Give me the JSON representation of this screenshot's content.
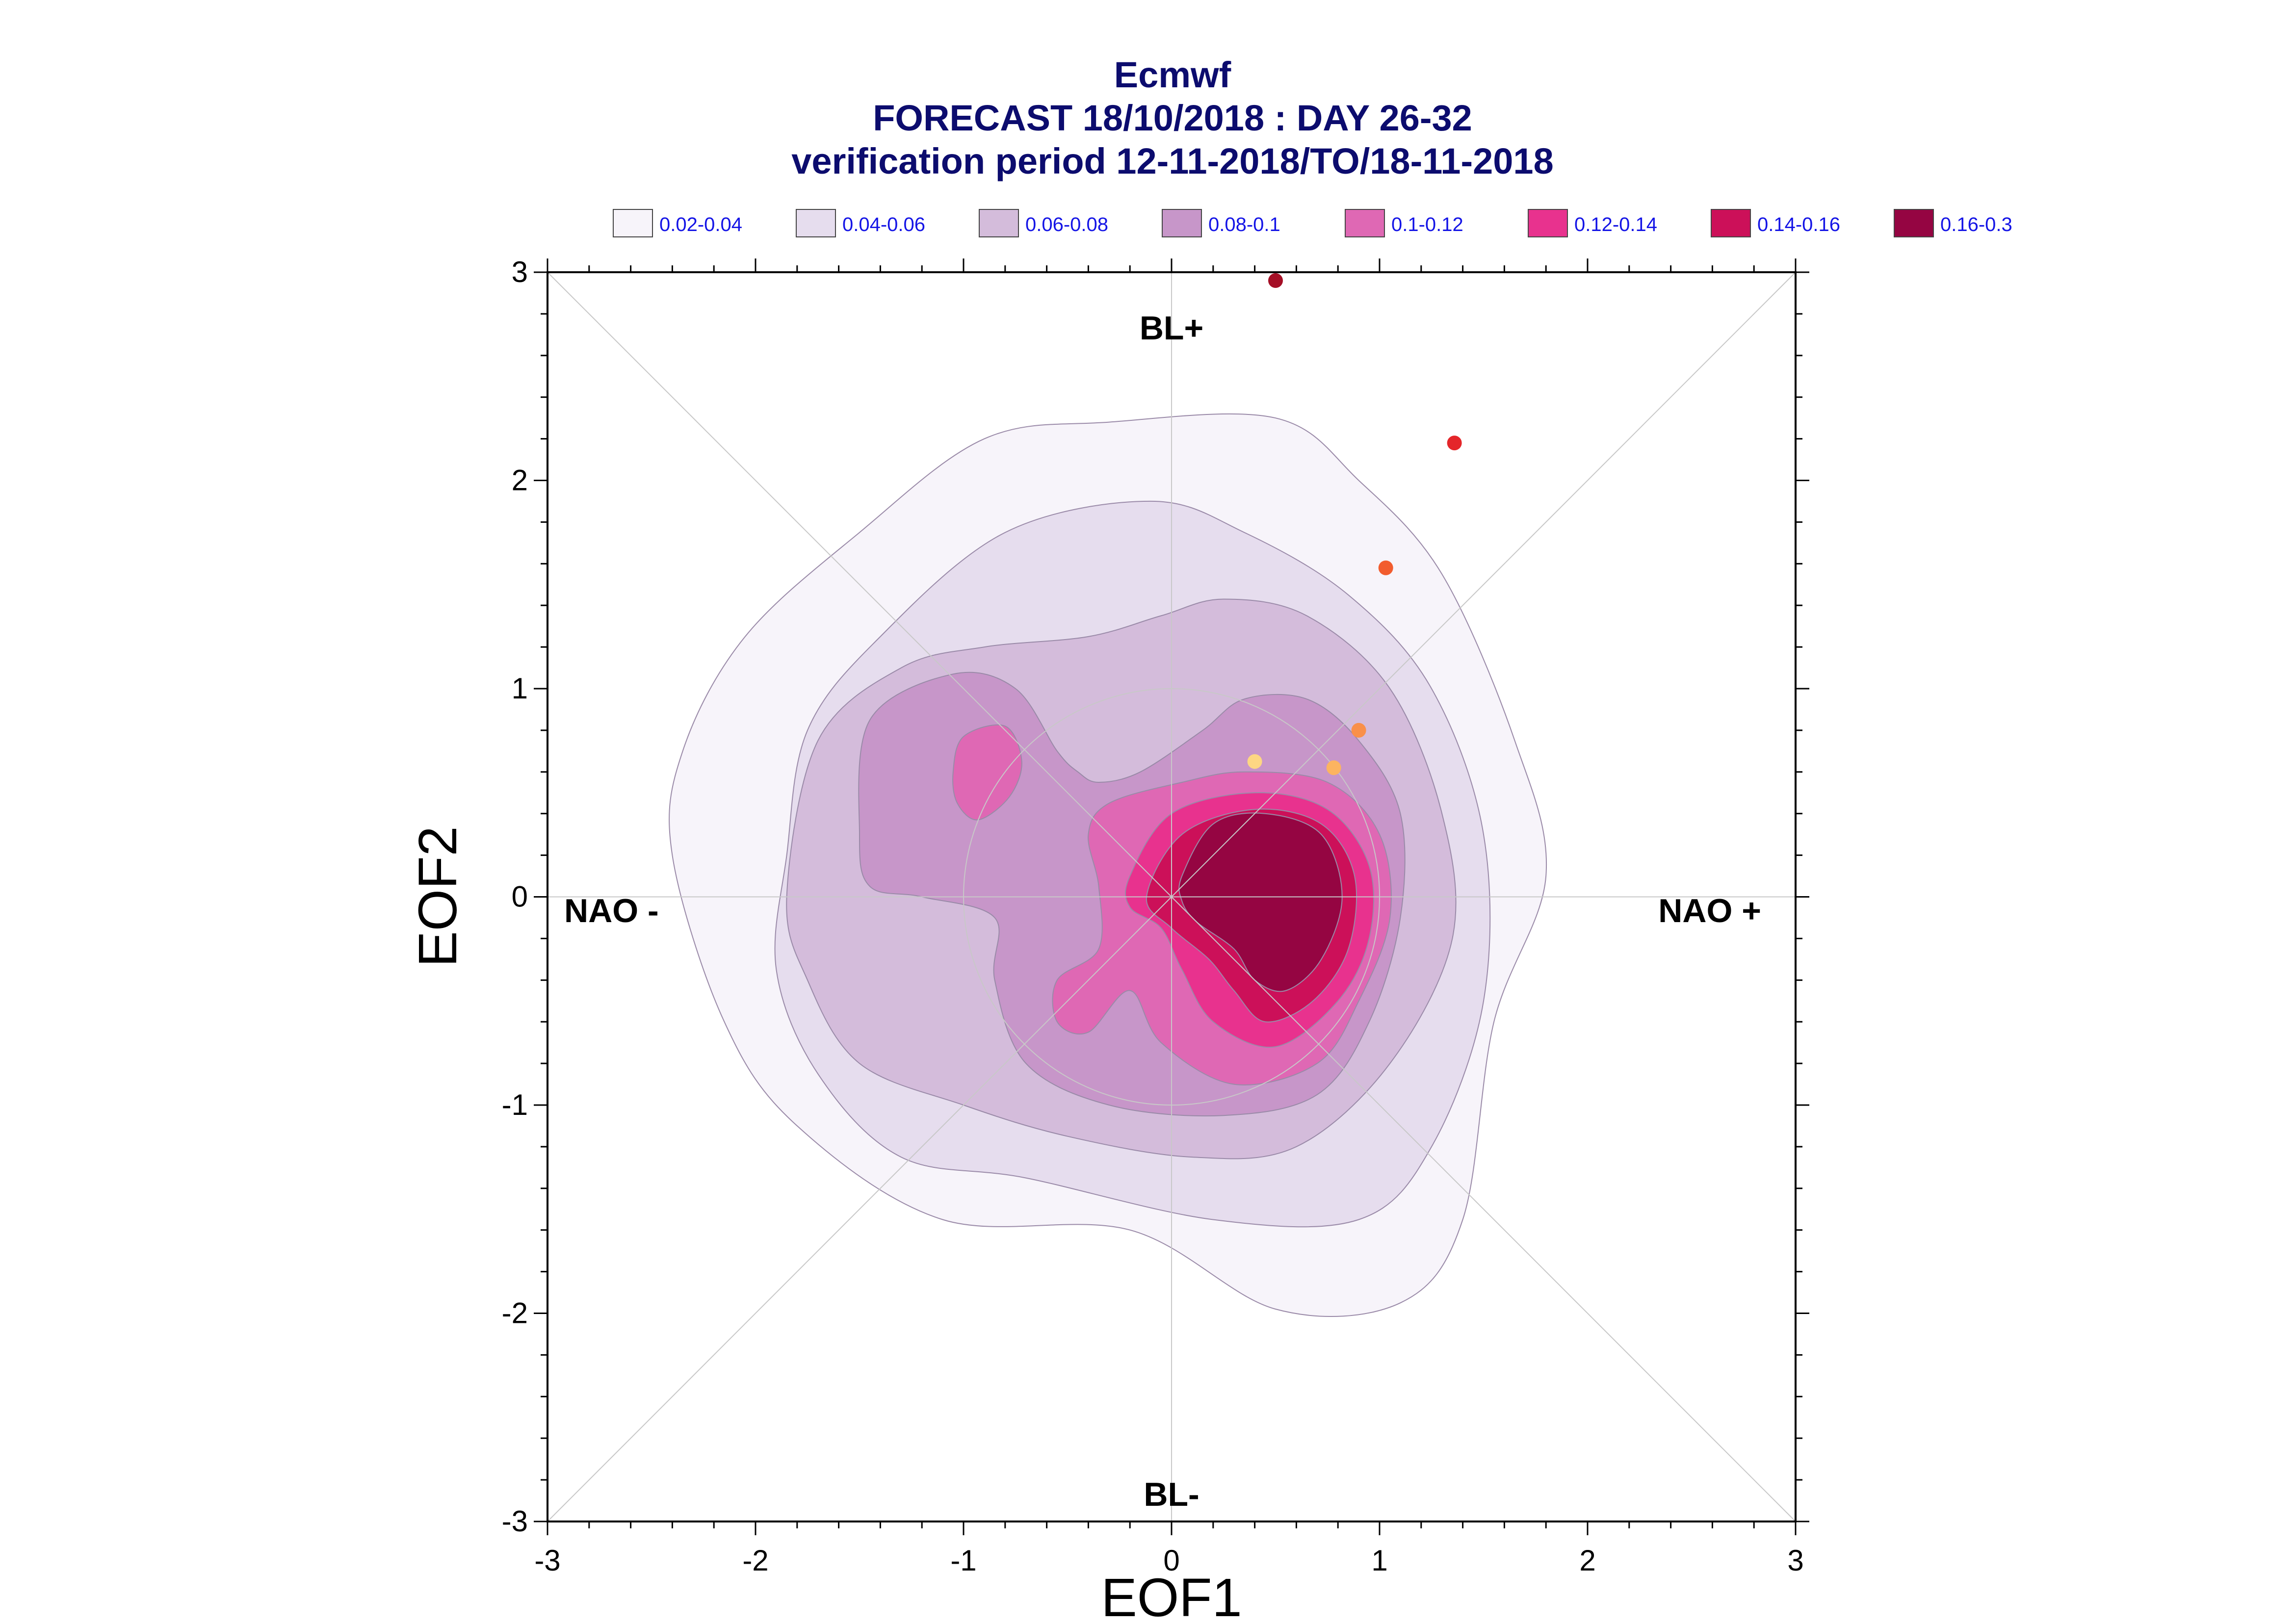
{
  "chart_data": {
    "type": "contour",
    "title_lines": [
      "Ecmwf",
      "FORECAST 18/10/2018 : DAY 26-32",
      "verification period 12-11-2018/TO/18-11-2018"
    ],
    "xlabel": "EOF1",
    "ylabel": "EOF2",
    "xlim": [
      -3,
      3
    ],
    "ylim": [
      -3,
      3
    ],
    "x_ticks": [
      "-3",
      "-2",
      "-1",
      "0",
      "1",
      "2",
      "3"
    ],
    "y_ticks": [
      "-3",
      "-2",
      "-1",
      "0",
      "1",
      "2",
      "3"
    ],
    "regime_labels": {
      "top": "BL+",
      "bottom": "BL-",
      "left": "NAO -",
      "right": "NAO +"
    },
    "legend": [
      {
        "label": "0.02-0.04",
        "color": "#f7f4fa"
      },
      {
        "label": "0.04-0.06",
        "color": "#e6ddee"
      },
      {
        "label": "0.06-0.08",
        "color": "#d4bcdb"
      },
      {
        "label": "0.08-0.1",
        "color": "#c796c9"
      },
      {
        "label": "0.1-0.12",
        "color": "#df68b4"
      },
      {
        "label": "0.12-0.14",
        "color": "#e8328e"
      },
      {
        "label": "0.14-0.16",
        "color": "#cc1059"
      },
      {
        "label": "0.16-0.3",
        "color": "#950542"
      }
    ],
    "contour_levels": [
      {
        "level": "0.02-0.04",
        "polygons": [
          [
            [
              -2.4,
              0.2
            ],
            [
              -2.35,
              0.7
            ],
            [
              -2.05,
              1.25
            ],
            [
              -1.5,
              1.75
            ],
            [
              -0.9,
              2.2
            ],
            [
              -0.3,
              2.28
            ],
            [
              0.5,
              2.3
            ],
            [
              0.9,
              2.0
            ],
            [
              1.3,
              1.55
            ],
            [
              1.65,
              0.75
            ],
            [
              1.8,
              0.1
            ],
            [
              1.55,
              -0.6
            ],
            [
              1.4,
              -1.55
            ],
            [
              1.1,
              -1.95
            ],
            [
              0.5,
              -1.98
            ],
            [
              -0.2,
              -1.6
            ],
            [
              -1.1,
              -1.55
            ],
            [
              -1.8,
              -1.1
            ],
            [
              -2.15,
              -0.6
            ]
          ]
        ]
      },
      {
        "level": "0.04-0.06",
        "polygons": [
          [
            [
              -1.85,
              0.2
            ],
            [
              -1.75,
              0.8
            ],
            [
              -1.4,
              1.25
            ],
            [
              -0.8,
              1.75
            ],
            [
              -0.1,
              1.9
            ],
            [
              0.35,
              1.75
            ],
            [
              0.85,
              1.45
            ],
            [
              1.25,
              1.0
            ],
            [
              1.5,
              0.3
            ],
            [
              1.5,
              -0.5
            ],
            [
              1.25,
              -1.2
            ],
            [
              0.9,
              -1.55
            ],
            [
              0.2,
              -1.55
            ],
            [
              -0.7,
              -1.35
            ],
            [
              -1.3,
              -1.25
            ],
            [
              -1.7,
              -0.85
            ],
            [
              -1.9,
              -0.35
            ]
          ]
        ]
      },
      {
        "level": "0.06-0.08",
        "polygons": [
          [
            [
              -1.85,
              0.0
            ],
            [
              -1.7,
              0.75
            ],
            [
              -1.3,
              1.1
            ],
            [
              -0.9,
              1.2
            ],
            [
              -0.4,
              1.25
            ],
            [
              -0.05,
              1.35
            ],
            [
              0.25,
              1.43
            ],
            [
              0.65,
              1.35
            ],
            [
              1.05,
              1.0
            ],
            [
              1.3,
              0.4
            ],
            [
              1.35,
              -0.2
            ],
            [
              1.05,
              -0.8
            ],
            [
              0.6,
              -1.2
            ],
            [
              0.1,
              -1.25
            ],
            [
              -0.5,
              -1.15
            ],
            [
              -1.0,
              -1.0
            ],
            [
              -1.5,
              -0.8
            ],
            [
              -1.75,
              -0.4
            ]
          ]
        ]
      },
      {
        "level": "0.08-0.1",
        "polygons": [
          [
            [
              -1.5,
              0.3
            ],
            [
              -1.45,
              0.85
            ],
            [
              -1.05,
              1.07
            ],
            [
              -0.75,
              1.0
            ],
            [
              -0.55,
              0.7
            ],
            [
              -0.45,
              0.6
            ],
            [
              -0.35,
              0.55
            ],
            [
              -0.15,
              0.6
            ],
            [
              0.15,
              0.8
            ],
            [
              0.35,
              0.95
            ],
            [
              0.65,
              0.95
            ],
            [
              0.9,
              0.75
            ],
            [
              1.1,
              0.4
            ],
            [
              1.1,
              -0.1
            ],
            [
              0.95,
              -0.6
            ],
            [
              0.7,
              -0.95
            ],
            [
              0.25,
              -1.05
            ],
            [
              -0.3,
              -1.0
            ],
            [
              -0.7,
              -0.8
            ],
            [
              -0.85,
              -0.4
            ],
            [
              -0.85,
              -0.1
            ],
            [
              -1.2,
              0.0
            ],
            [
              -1.45,
              0.05
            ]
          ]
        ]
      },
      {
        "level": "0.1-0.12",
        "polygons": [
          [
            [
              -1.05,
              0.6
            ],
            [
              -1.0,
              0.77
            ],
            [
              -0.8,
              0.82
            ],
            [
              -0.72,
              0.65
            ],
            [
              -0.78,
              0.48
            ],
            [
              -0.93,
              0.37
            ],
            [
              -1.03,
              0.45
            ]
          ],
          [
            [
              -0.4,
              0.3
            ],
            [
              -0.3,
              0.45
            ],
            [
              0.05,
              0.55
            ],
            [
              0.35,
              0.6
            ],
            [
              0.75,
              0.55
            ],
            [
              1.0,
              0.3
            ],
            [
              1.05,
              -0.1
            ],
            [
              0.9,
              -0.5
            ],
            [
              0.7,
              -0.8
            ],
            [
              0.3,
              -0.9
            ],
            [
              -0.05,
              -0.7
            ],
            [
              -0.2,
              -0.45
            ],
            [
              -0.4,
              -0.65
            ],
            [
              -0.55,
              -0.6
            ],
            [
              -0.55,
              -0.4
            ],
            [
              -0.35,
              -0.25
            ],
            [
              -0.35,
              0.05
            ]
          ]
        ]
      },
      {
        "level": "0.12-0.14",
        "polygons": [
          [
            [
              -0.2,
              0.1
            ],
            [
              0.0,
              0.4
            ],
            [
              0.4,
              0.5
            ],
            [
              0.75,
              0.42
            ],
            [
              0.95,
              0.15
            ],
            [
              0.95,
              -0.2
            ],
            [
              0.8,
              -0.5
            ],
            [
              0.5,
              -0.72
            ],
            [
              0.2,
              -0.6
            ],
            [
              0.05,
              -0.35
            ],
            [
              -0.05,
              -0.15
            ],
            [
              -0.2,
              -0.05
            ]
          ]
        ]
      },
      {
        "level": "0.14-0.16",
        "polygons": [
          [
            [
              -0.12,
              0.0
            ],
            [
              0.05,
              0.3
            ],
            [
              0.4,
              0.42
            ],
            [
              0.72,
              0.35
            ],
            [
              0.88,
              0.1
            ],
            [
              0.85,
              -0.25
            ],
            [
              0.68,
              -0.5
            ],
            [
              0.45,
              -0.6
            ],
            [
              0.3,
              -0.45
            ],
            [
              0.18,
              -0.3
            ],
            [
              0.0,
              -0.15
            ]
          ]
        ]
      },
      {
        "level": "0.16-0.3",
        "polygons": [
          [
            [
              0.05,
              0.1
            ],
            [
              0.2,
              0.35
            ],
            [
              0.45,
              0.4
            ],
            [
              0.72,
              0.3
            ],
            [
              0.82,
              0.0
            ],
            [
              0.72,
              -0.3
            ],
            [
              0.55,
              -0.45
            ],
            [
              0.4,
              -0.4
            ],
            [
              0.3,
              -0.25
            ],
            [
              0.12,
              -0.12
            ],
            [
              0.05,
              -0.02
            ]
          ]
        ]
      }
    ],
    "reference_circles": [
      1
    ],
    "observed_points": [
      {
        "x": 0.5,
        "y": 2.96,
        "color": "#a50f26"
      },
      {
        "x": 1.36,
        "y": 2.18,
        "color": "#e4262a"
      },
      {
        "x": 1.03,
        "y": 1.58,
        "color": "#f25c2e"
      },
      {
        "x": 0.9,
        "y": 0.8,
        "color": "#f9904a"
      },
      {
        "x": 0.78,
        "y": 0.62,
        "color": "#fcb460"
      },
      {
        "x": 0.4,
        "y": 0.65,
        "color": "#fdd683"
      }
    ],
    "grid": false
  }
}
